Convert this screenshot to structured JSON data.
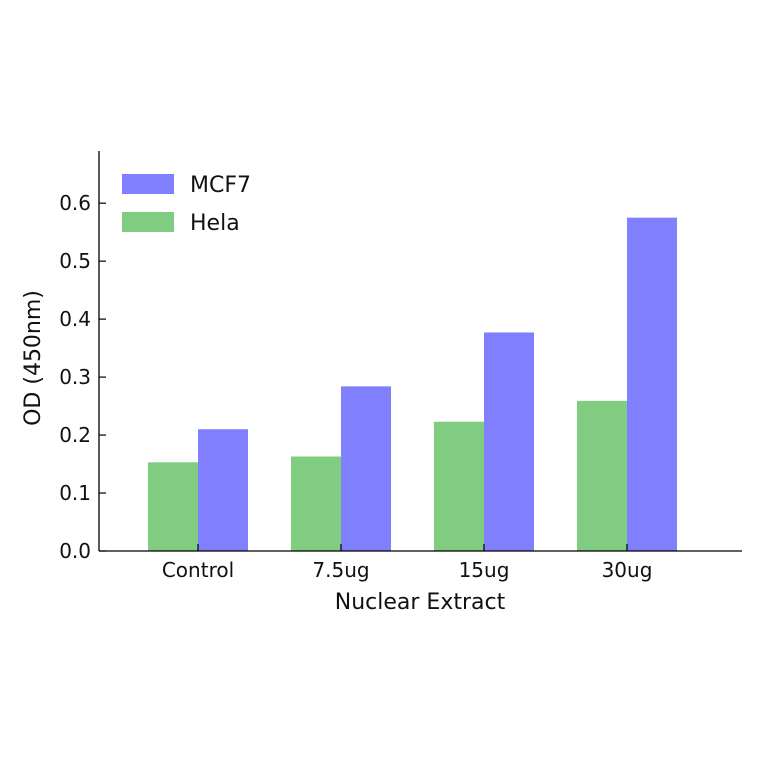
{
  "chart_data": {
    "type": "bar",
    "xlabel": "Nuclear Extract",
    "ylabel": "OD (450nm)",
    "categories": [
      "Control",
      "7.5ug",
      "15ug",
      "30ug"
    ],
    "series": [
      {
        "name": "Hela",
        "color": "#80cc80",
        "values": [
          0.153,
          0.163,
          0.223,
          0.259
        ]
      },
      {
        "name": "MCF7",
        "color": "#8080ff",
        "values": [
          0.21,
          0.284,
          0.377,
          0.575
        ]
      }
    ],
    "ylim": [
      0.0,
      0.69
    ],
    "yticks": [
      "0.0",
      "0.1",
      "0.2",
      "0.3",
      "0.4",
      "0.5",
      "0.6"
    ],
    "legend": {
      "position": "top-left",
      "entries": [
        {
          "label": "MCF7",
          "color": "#8080ff"
        },
        {
          "label": "Hela",
          "color": "#80cc80"
        }
      ]
    },
    "grid": false
  }
}
